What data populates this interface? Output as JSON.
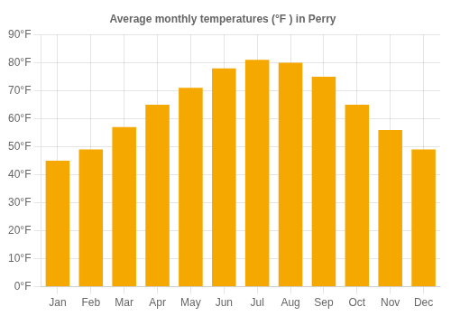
{
  "chart_data": {
    "type": "bar",
    "title": "Average monthly temperatures (°F ) in Perry",
    "categories": [
      "Jan",
      "Feb",
      "Mar",
      "Apr",
      "May",
      "Jun",
      "Jul",
      "Aug",
      "Sep",
      "Oct",
      "Nov",
      "Dec"
    ],
    "values": [
      45,
      49,
      57,
      65,
      71,
      78,
      81,
      80,
      75,
      65,
      56,
      49
    ],
    "color": "#F5A800",
    "ylim": [
      0,
      90
    ],
    "yticks": [
      {
        "value": 0,
        "label": "0°F"
      },
      {
        "value": 10,
        "label": "10°F"
      },
      {
        "value": 20,
        "label": "20°F"
      },
      {
        "value": 30,
        "label": "30°F"
      },
      {
        "value": 40,
        "label": "40°F"
      },
      {
        "value": 50,
        "label": "50°F"
      },
      {
        "value": 60,
        "label": "60°F"
      },
      {
        "value": 70,
        "label": "70°F"
      },
      {
        "value": 80,
        "label": "80°F"
      },
      {
        "value": 90,
        "label": "90°F"
      }
    ],
    "grid": true
  }
}
